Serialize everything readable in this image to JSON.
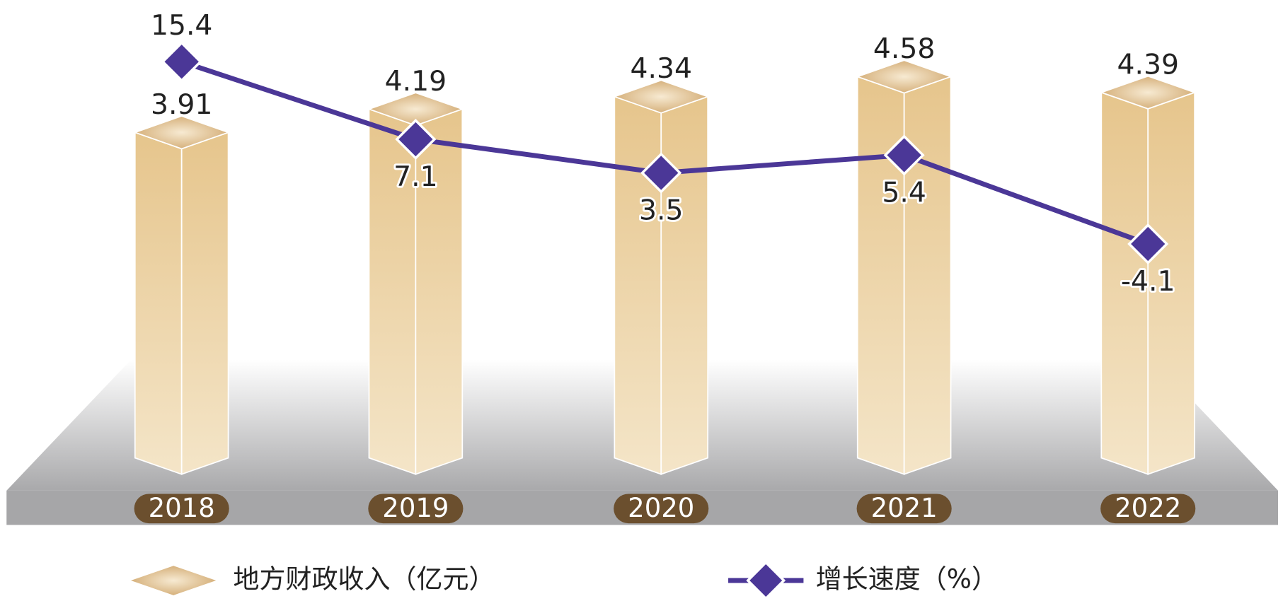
{
  "chart_data": {
    "type": "combo",
    "categories": [
      "2018",
      "2019",
      "2020",
      "2021",
      "2022"
    ],
    "series": [
      {
        "name": "地方财政收入（亿元）",
        "type": "bar",
        "color": "#e3c185",
        "values": [
          3.91,
          4.19,
          4.34,
          4.58,
          4.39
        ]
      },
      {
        "name": "增长速度（%）",
        "type": "line",
        "axis": "y2",
        "color": "#4b3797",
        "values": [
          15.4,
          7.1,
          3.5,
          5.4,
          -4.1
        ]
      }
    ],
    "ylim": [
      0,
      5.5
    ],
    "y2lim": [
      -27,
      22
    ]
  }
}
